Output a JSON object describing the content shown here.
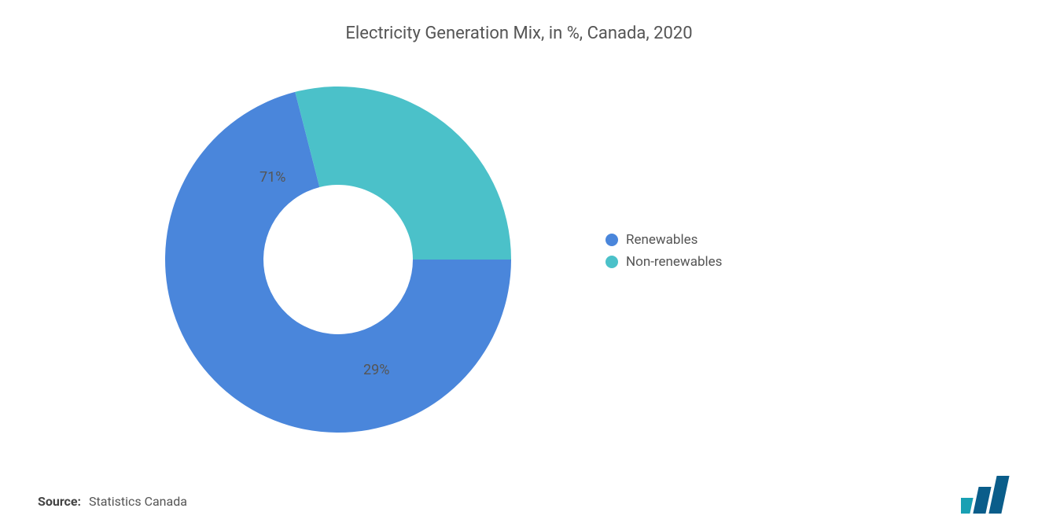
{
  "chart": {
    "type": "donut",
    "title": "Electricity Generation Mix, in %, Canada, 2020",
    "title_fontsize": 22,
    "title_color": "#555555",
    "background_color": "#ffffff",
    "donut_outer_radius": 220,
    "donut_inner_radius": 95,
    "start_angle_deg": 0,
    "slices": [
      {
        "label": "Renewables",
        "value": 71,
        "color": "#4a86db",
        "display": "71%"
      },
      {
        "label": "Non-renewables",
        "value": 29,
        "color": "#4bc1c9",
        "display": "29%"
      }
    ],
    "data_label_fontsize": 18,
    "data_label_color": "#555555"
  },
  "legend": {
    "items": [
      {
        "label": "Renewables",
        "color": "#4a86db"
      },
      {
        "label": "Non-renewables",
        "color": "#4bc1c9"
      }
    ],
    "fontsize": 17,
    "color": "#555555"
  },
  "source": {
    "label": "Source:",
    "value": "Statistics Canada",
    "fontsize": 16
  },
  "logo": {
    "bar_colors": [
      "#18a0b3",
      "#0a5d8a",
      "#0a5d8a"
    ]
  }
}
